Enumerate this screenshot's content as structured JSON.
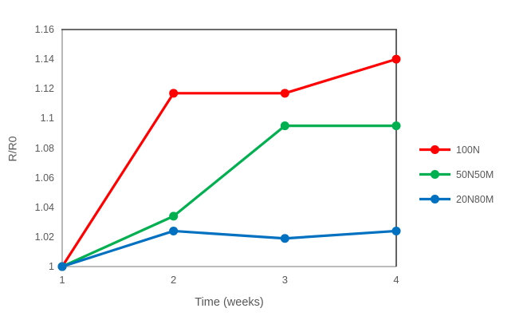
{
  "chart_data": {
    "type": "line",
    "title": "",
    "xlabel": "Time (weeks)",
    "ylabel": "R/R0",
    "x": [
      1,
      2,
      3,
      4
    ],
    "x_tick_labels": [
      "1",
      "2",
      "3",
      "4"
    ],
    "y_tick_labels": [
      "1",
      "1.02",
      "1.04",
      "1.06",
      "1.08",
      "1.1",
      "1.12",
      "1.14",
      "1.16"
    ],
    "xlim": [
      1,
      4
    ],
    "ylim": [
      1,
      1.16
    ],
    "grid": false,
    "legend_position": "right",
    "marker": "circle",
    "series": [
      {
        "name": "100N",
        "color": "#FF0000",
        "values": [
          1,
          1.117,
          1.117,
          1.14
        ]
      },
      {
        "name": "50N50M",
        "color": "#00B050",
        "values": [
          1,
          1.034,
          1.095,
          1.095
        ]
      },
      {
        "name": "20N80M",
        "color": "#0070C0",
        "values": [
          1,
          1.024,
          1.019,
          1.024
        ]
      }
    ]
  },
  "colors": {
    "axis_line_gray": "#A6A6A6",
    "plot_border_dark": "#3b3b3b",
    "text_gray": "#595959",
    "background": "#ffffff"
  }
}
